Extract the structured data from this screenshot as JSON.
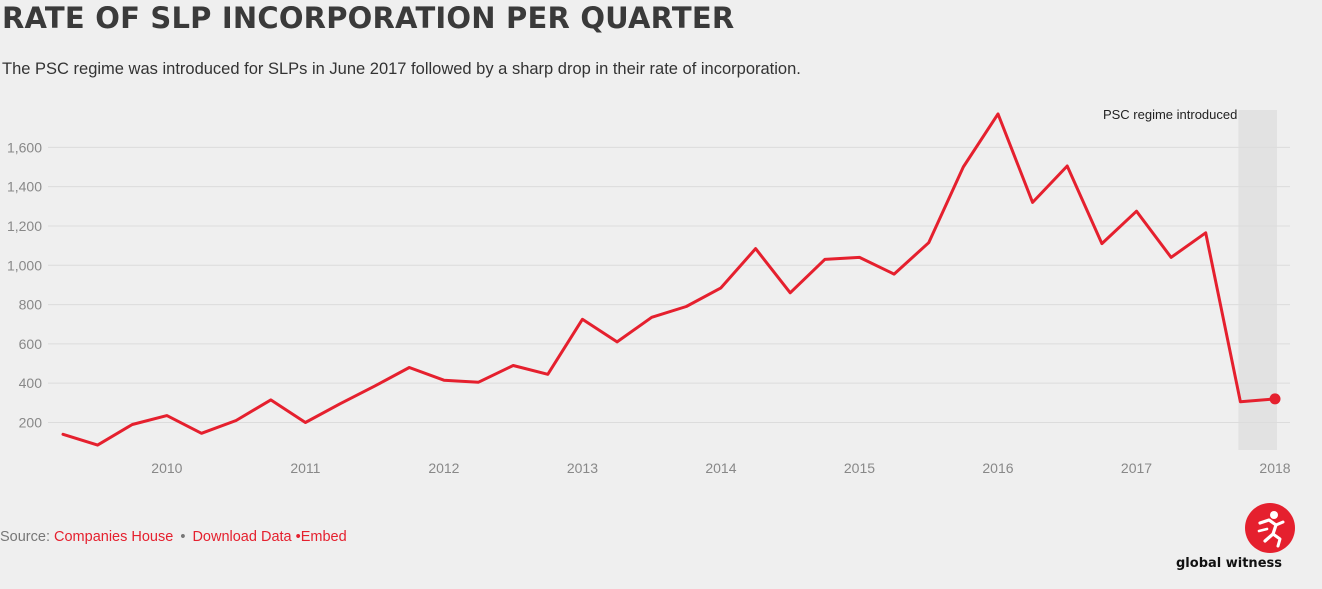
{
  "header": {
    "title": "RATE OF SLP INCORPORATION PER QUARTER",
    "subtitle": "The PSC regime was introduced for SLPs in June 2017 followed by a sharp drop in their rate of incorporation."
  },
  "footer": {
    "source_label": "Source:",
    "source_link": "Companies House",
    "separator": "•",
    "download_link": "Download Data",
    "embed_link": "•Embed"
  },
  "logo": {
    "wordmark": "global witness",
    "icon": "running-figure-icon"
  },
  "colors": {
    "line": "#e5202e",
    "background": "#efefef",
    "band": "#e2e2e2",
    "grid": "#dcdcdc"
  },
  "chart_data": {
    "type": "line",
    "title": "RATE OF SLP INCORPORATION PER QUARTER",
    "xlabel": "",
    "ylabel": "",
    "x_start_year": 2009.25,
    "x_step": 0.25,
    "xlim": [
      2009.25,
      2018.05
    ],
    "x_ticks": [
      2010,
      2011,
      2012,
      2013,
      2014,
      2015,
      2016,
      2017,
      2018
    ],
    "x_tick_labels": [
      "2010",
      "2011",
      "2012",
      "2013",
      "2014",
      "2015",
      "2016",
      "2017",
      "2018"
    ],
    "ylim": [
      60,
      1790
    ],
    "y_ticks": [
      200,
      400,
      600,
      800,
      1000,
      1200,
      1400,
      1600
    ],
    "y_tick_labels": [
      "200",
      "400",
      "600",
      "800",
      "1,000",
      "1,200",
      "1,400",
      "1,600"
    ],
    "grid": true,
    "series": [
      {
        "name": "",
        "values": [
          140,
          85,
          190,
          235,
          145,
          210,
          315,
          200,
          295,
          385,
          480,
          415,
          405,
          490,
          445,
          725,
          610,
          735,
          790,
          885,
          1085,
          860,
          1030,
          1040,
          955,
          1115,
          1500,
          1770,
          1320,
          1505,
          1110,
          1275,
          1040,
          1165,
          305,
          320
        ]
      }
    ],
    "annotations": [
      {
        "label": "PSC regime introduced",
        "x_from": 2017.75,
        "x_to": 2018.0
      }
    ]
  }
}
